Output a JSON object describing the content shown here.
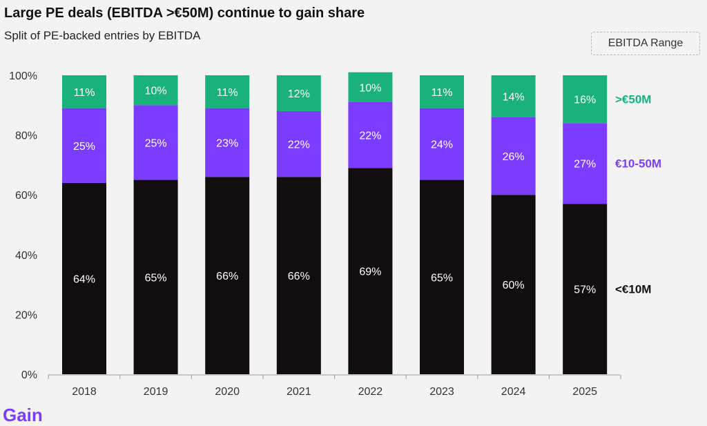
{
  "title": "Large PE deals (EBITDA >€50M) continue to gain share",
  "subtitle": "Split of PE-backed entries by EBITDA",
  "legend_title": "EBITDA Range",
  "logo": {
    "text": "Gain",
    "color": "#7b3cff"
  },
  "chart_data": {
    "type": "bar",
    "stacked": true,
    "categories": [
      "2018",
      "2019",
      "2020",
      "2021",
      "2022",
      "2023",
      "2024",
      "2025"
    ],
    "series": [
      {
        "name": "<€10M",
        "color": "#120d0f",
        "label_color": "#111111",
        "values": [
          64,
          65,
          66,
          66,
          69,
          65,
          60,
          57
        ]
      },
      {
        "name": "€10-50M",
        "color": "#7b3cff",
        "label_color": "#7b3cff",
        "values": [
          25,
          25,
          23,
          22,
          22,
          24,
          26,
          27
        ]
      },
      {
        "name": ">€50M",
        "color": "#19b27a",
        "label_color": "#19b27a",
        "values": [
          11,
          10,
          11,
          12,
          10,
          11,
          14,
          16
        ]
      }
    ],
    "value_suffix": "%",
    "ylim": [
      0,
      100
    ],
    "yticks": [
      "0%",
      "20%",
      "40%",
      "60%",
      "80%",
      "100%"
    ],
    "legend_position": "right",
    "grid": false
  }
}
